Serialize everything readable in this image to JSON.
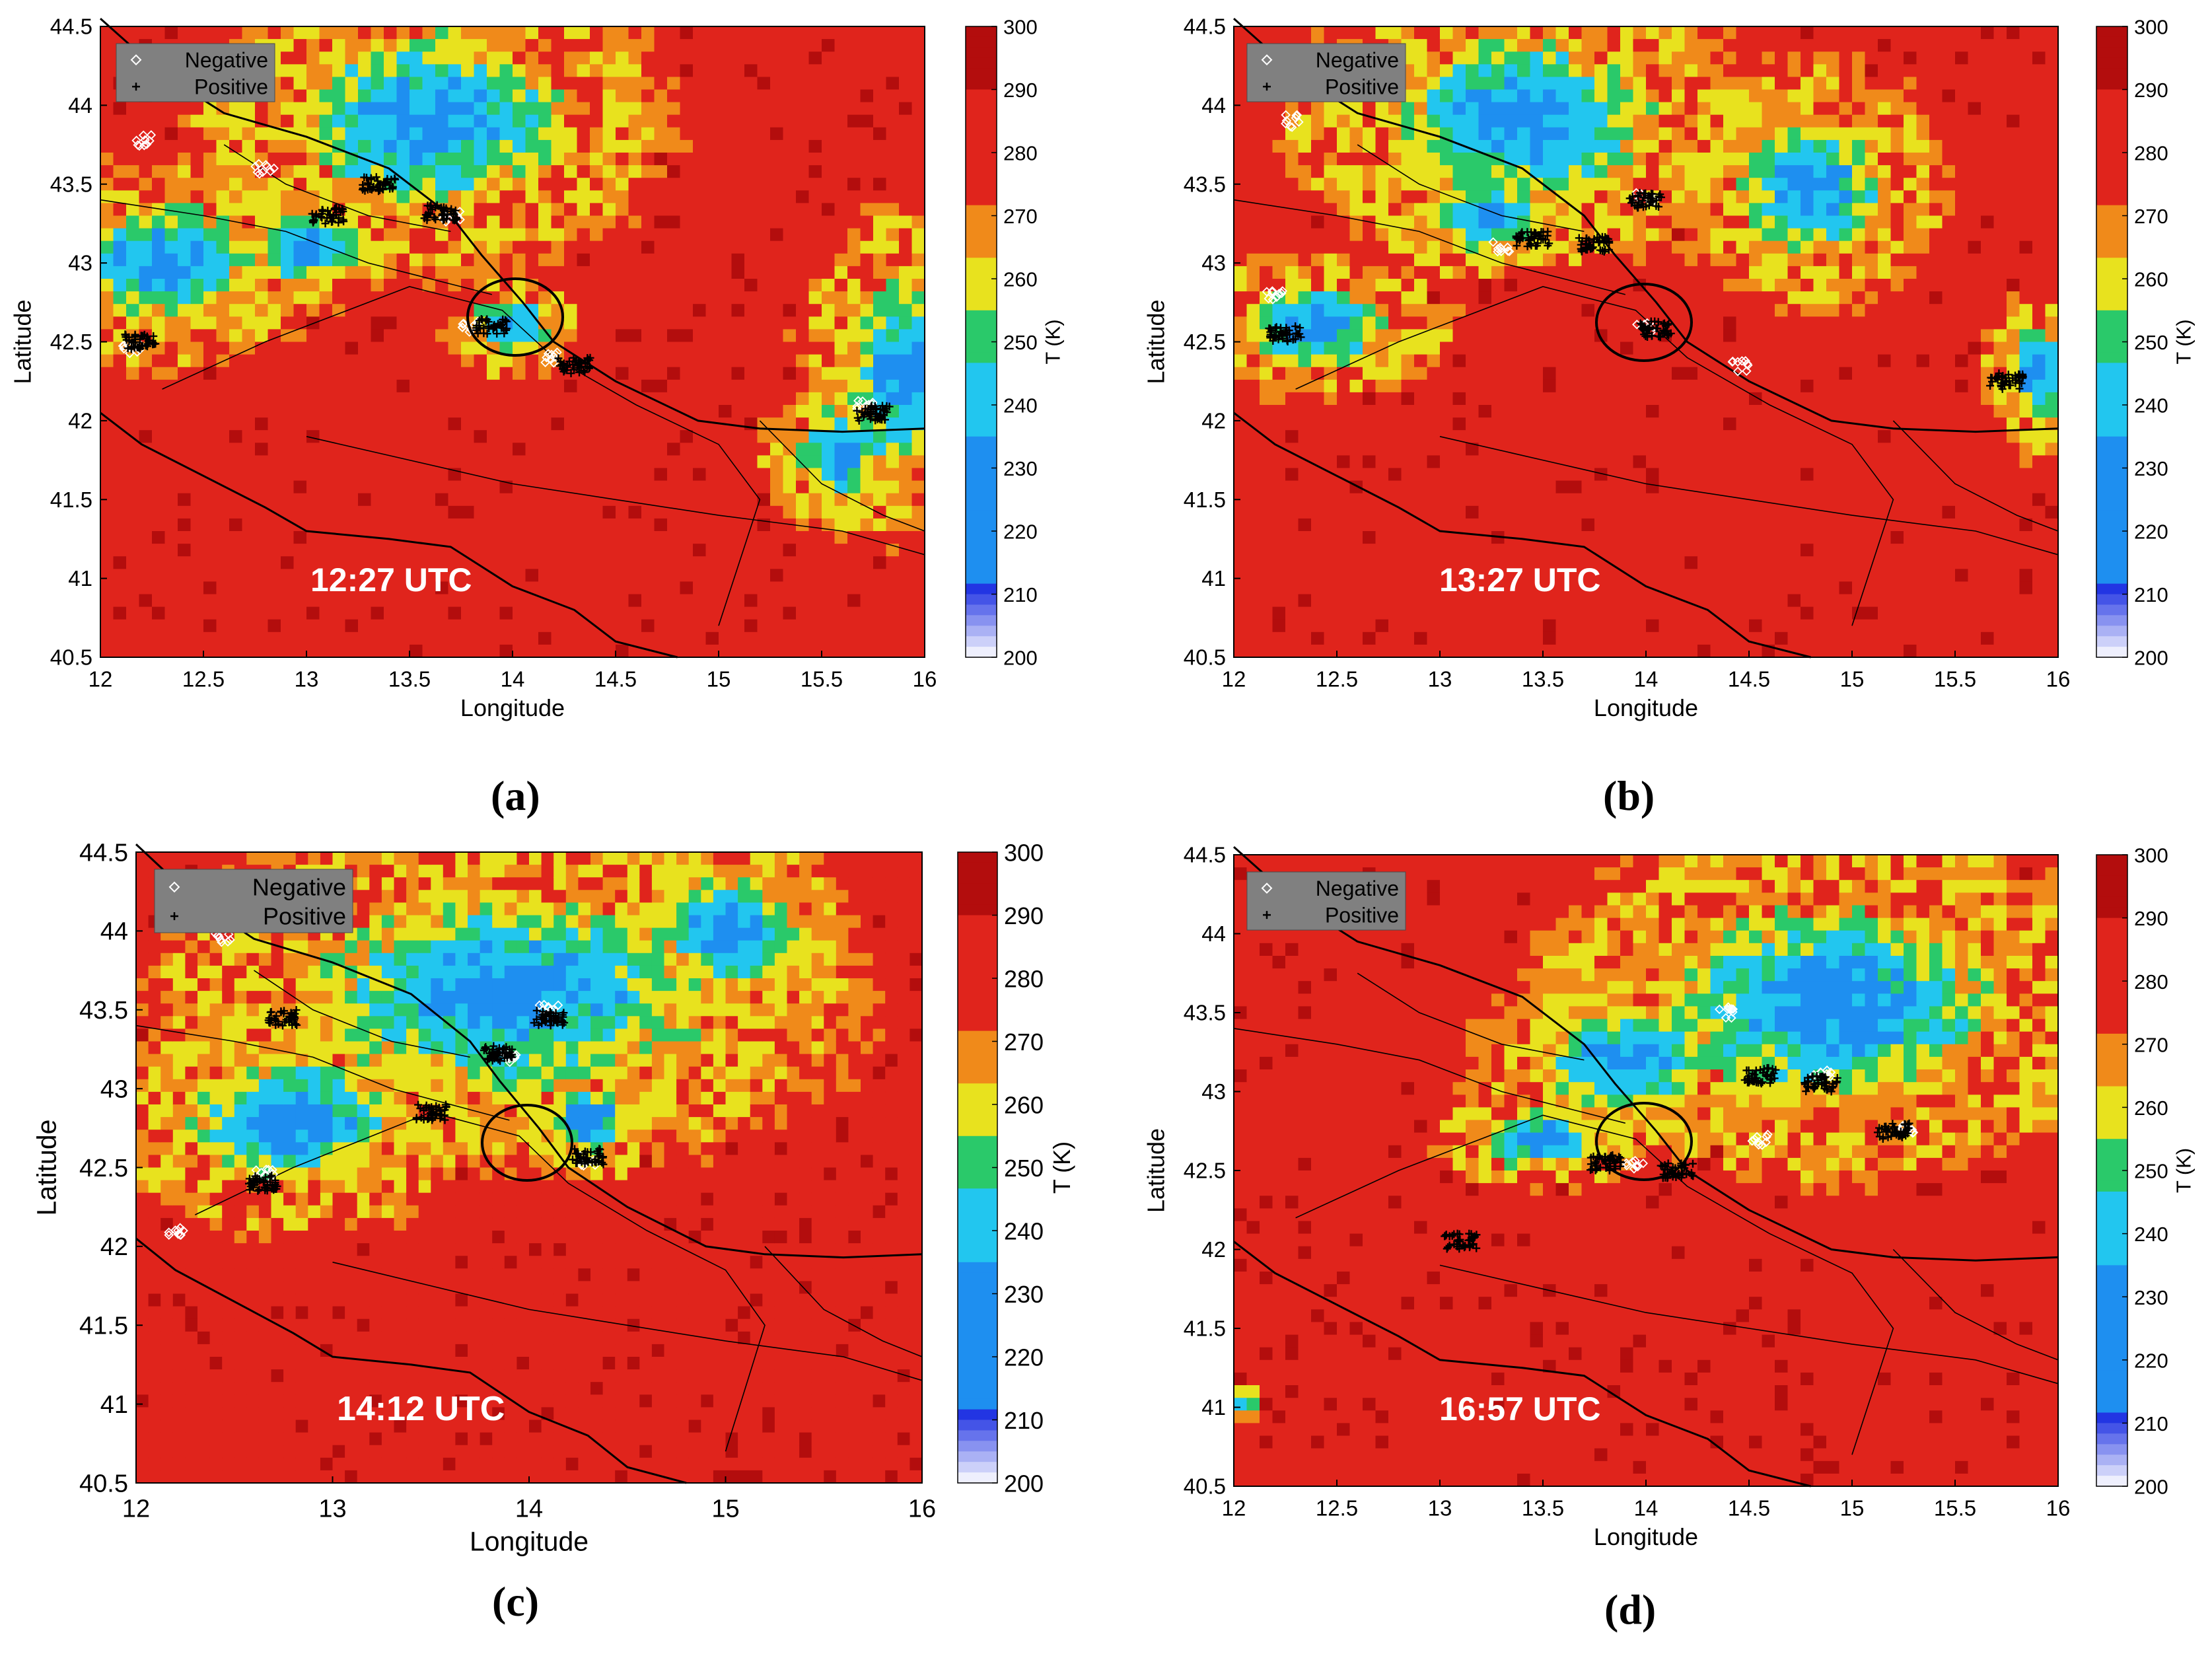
{
  "colors": {
    "warm_dark": "#b30d0d",
    "warm": "#e0241c",
    "orange": "#f08a1a",
    "yellow": "#e8e21e",
    "green": "#2ac96a",
    "cyan": "#22c6ef",
    "blue": "#1e8ff0",
    "deep_blue": "#0a1fe0",
    "border": "#000000",
    "negative_marker": "#ffffff",
    "positive_marker": "#000000"
  },
  "colorbar": {
    "label": "T (K)",
    "ticks": [
      "300",
      "290",
      "280",
      "270",
      "260",
      "250",
      "240",
      "230",
      "220",
      "210",
      "200"
    ],
    "min": 200,
    "max": 300
  },
  "legend": {
    "negative": "Negative",
    "positive": "Positive"
  },
  "axes": {
    "xlabel": "Longitude",
    "ylabel": "Latitude",
    "x_ticks_fine": [
      "12",
      "12.5",
      "13",
      "13.5",
      "14",
      "14.5",
      "15",
      "15.5",
      "16"
    ],
    "x_ticks_coarse": [
      "12",
      "13",
      "14",
      "15",
      "16"
    ],
    "y_ticks": [
      "44.5",
      "44",
      "43.5",
      "43",
      "42.5",
      "42",
      "41.5",
      "41",
      "40.5"
    ]
  },
  "panels": [
    {
      "caption": "(a)",
      "time": "12:27 UTC",
      "cold": [
        [
          13.6,
          43.9,
          0.9,
          0.75
        ],
        [
          12.3,
          43.0,
          0.6,
          0.5
        ],
        [
          15.9,
          42.3,
          0.4,
          0.8
        ],
        [
          14.0,
          42.6,
          0.25,
          0.25
        ],
        [
          13.0,
          43.1,
          0.35,
          0.3
        ],
        [
          15.6,
          41.8,
          0.3,
          0.4
        ]
      ],
      "negative_strikes": [
        [
          12.2,
          43.78
        ],
        [
          12.8,
          43.6
        ],
        [
          13.7,
          43.3
        ],
        [
          15.7,
          42.1
        ],
        [
          14.2,
          42.4
        ],
        [
          13.8,
          42.6
        ],
        [
          12.15,
          42.45
        ]
      ],
      "positive_strikes": [
        [
          13.65,
          43.32
        ],
        [
          12.2,
          42.5
        ],
        [
          15.75,
          42.05
        ],
        [
          13.9,
          42.6
        ],
        [
          14.3,
          42.35
        ],
        [
          13.35,
          43.5
        ],
        [
          13.1,
          43.3
        ]
      ]
    },
    {
      "caption": "(b)",
      "time": "13:27 UTC",
      "cold": [
        [
          13.4,
          43.9,
          0.9,
          0.7
        ],
        [
          12.4,
          42.6,
          0.5,
          0.35
        ],
        [
          14.8,
          43.5,
          0.5,
          0.6
        ],
        [
          15.9,
          42.3,
          0.2,
          0.4
        ],
        [
          13.2,
          43.3,
          0.4,
          0.3
        ]
      ],
      "negative_strikes": [
        [
          14.0,
          43.42
        ],
        [
          13.3,
          43.1
        ],
        [
          12.3,
          43.9
        ],
        [
          14.0,
          42.6
        ],
        [
          14.45,
          42.35
        ],
        [
          12.2,
          42.8
        ]
      ],
      "positive_strikes": [
        [
          14.0,
          43.4
        ],
        [
          13.45,
          43.15
        ],
        [
          14.05,
          42.58
        ],
        [
          13.75,
          43.12
        ],
        [
          15.75,
          42.25
        ],
        [
          12.25,
          42.55
        ]
      ]
    },
    {
      "caption": "(c)",
      "time": "14:12 UTC",
      "cold": [
        [
          13.9,
          43.6,
          1.4,
          0.85
        ],
        [
          12.8,
          42.8,
          0.75,
          0.55
        ],
        [
          15.0,
          44.0,
          0.5,
          0.5
        ],
        [
          14.3,
          42.8,
          0.3,
          0.3
        ]
      ],
      "negative_strikes": [
        [
          14.1,
          43.5
        ],
        [
          13.9,
          43.2
        ],
        [
          12.45,
          43.95
        ],
        [
          12.65,
          42.45
        ],
        [
          12.2,
          42.1
        ],
        [
          14.3,
          42.55
        ]
      ],
      "positive_strikes": [
        [
          14.1,
          43.45
        ],
        [
          13.85,
          43.22
        ],
        [
          14.3,
          42.57
        ],
        [
          13.5,
          42.85
        ],
        [
          12.65,
          42.4
        ],
        [
          12.75,
          43.45
        ]
      ]
    },
    {
      "caption": "(d)",
      "time": "16:57 UTC",
      "cold": [
        [
          14.9,
          43.55,
          1.1,
          0.85
        ],
        [
          13.9,
          43.2,
          0.6,
          0.45
        ],
        [
          13.5,
          42.7,
          0.4,
          0.25
        ],
        [
          12.05,
          41.0,
          0.08,
          0.1
        ]
      ],
      "negative_strikes": [
        [
          14.85,
          43.1
        ],
        [
          14.4,
          43.5
        ],
        [
          15.25,
          42.75
        ],
        [
          14.55,
          42.7
        ],
        [
          13.95,
          42.55
        ]
      ],
      "positive_strikes": [
        [
          14.85,
          43.05
        ],
        [
          14.55,
          43.1
        ],
        [
          15.2,
          42.75
        ],
        [
          13.8,
          42.55
        ],
        [
          13.1,
          42.05
        ],
        [
          14.15,
          42.5
        ]
      ]
    }
  ]
}
